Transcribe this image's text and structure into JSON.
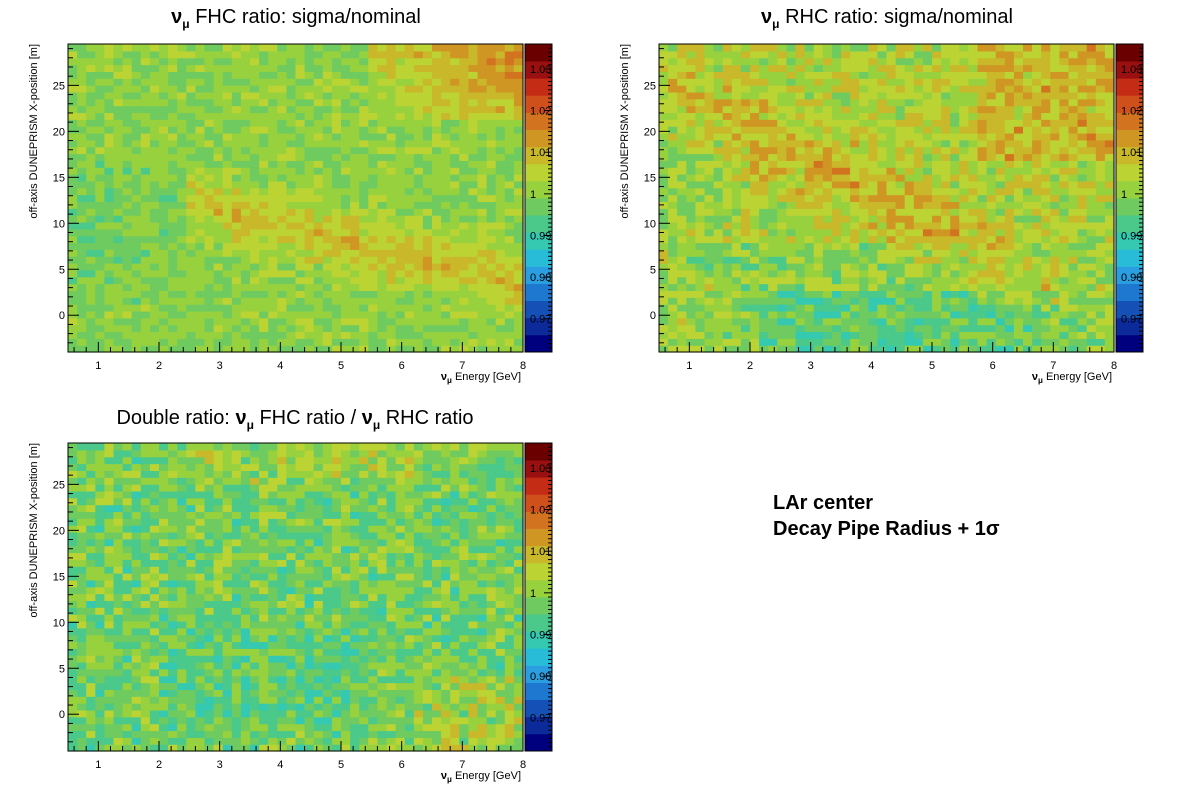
{
  "chart_data": [
    {
      "type": "heatmap",
      "title": "ν_μ FHC ratio: sigma/nominal",
      "title_parts": {
        "symbol": "ν",
        "sub": "μ",
        "rest": " FHC ratio: sigma/nominal"
      },
      "xlabel": "Energy [GeV]",
      "xlabel_symbol": "ν",
      "xlabel_sub": "μ",
      "ylabel": "off-axis DUNEPRISM X-position [m]",
      "xlim": [
        0.5,
        8
      ],
      "ylim": [
        -4,
        29.5
      ],
      "x_ticks": [
        1,
        2,
        3,
        4,
        5,
        6,
        7,
        8
      ],
      "y_ticks": [
        0,
        5,
        10,
        15,
        20,
        25
      ],
      "z_range": [
        0.962,
        1.036
      ],
      "z_ticks": [
        0.97,
        0.98,
        0.99,
        1,
        1.01,
        1.02,
        1.03
      ],
      "z_tick_labels": [
        "0.97",
        "0.98",
        "0.99",
        "1",
        "1.01",
        "1.02",
        "1.03"
      ],
      "palette": [
        "#00007f",
        "#0c2a99",
        "#1450b5",
        "#1e78d0",
        "#2a9ee0",
        "#28bcd8",
        "#34c9b0",
        "#4ac98a",
        "#6fcb5f",
        "#98d13e",
        "#bcd433",
        "#c8b82a",
        "#d09624",
        "#d27320",
        "#d0501c",
        "#c42c16",
        "#9a1010",
        "#6a0000"
      ],
      "grid": "off",
      "legend": "colorbar-right",
      "pattern": "fhc",
      "seed": 11
    },
    {
      "type": "heatmap",
      "title": "ν_μ RHC ratio: sigma/nominal",
      "title_parts": {
        "symbol": "ν",
        "sub": "μ",
        "rest": " RHC ratio: sigma/nominal"
      },
      "xlabel": "Energy [GeV]",
      "xlabel_symbol": "ν",
      "xlabel_sub": "μ",
      "ylabel": "off-axis DUNEPRISM X-position [m]",
      "xlim": [
        0.5,
        8
      ],
      "ylim": [
        -4,
        29.5
      ],
      "x_ticks": [
        1,
        2,
        3,
        4,
        5,
        6,
        7,
        8
      ],
      "y_ticks": [
        0,
        5,
        10,
        15,
        20,
        25
      ],
      "z_range": [
        0.962,
        1.036
      ],
      "z_ticks": [
        0.97,
        0.98,
        0.99,
        1,
        1.01,
        1.02,
        1.03
      ],
      "z_tick_labels": [
        "0.97",
        "0.98",
        "0.99",
        "1",
        "1.01",
        "1.02",
        "1.03"
      ],
      "palette": [
        "#00007f",
        "#0c2a99",
        "#1450b5",
        "#1e78d0",
        "#2a9ee0",
        "#28bcd8",
        "#34c9b0",
        "#4ac98a",
        "#6fcb5f",
        "#98d13e",
        "#bcd433",
        "#c8b82a",
        "#d09624",
        "#d27320",
        "#d0501c",
        "#c42c16",
        "#9a1010",
        "#6a0000"
      ],
      "grid": "off",
      "legend": "colorbar-right",
      "pattern": "rhc",
      "seed": 29
    },
    {
      "type": "heatmap",
      "title": "Double ratio: ν_μ FHC ratio / ν_μ RHC ratio",
      "title_parts": {
        "pre": "Double ratio: ",
        "symbol": "ν",
        "sub": "μ",
        "mid": " FHC ratio / ",
        "symbol2": "ν",
        "sub2": "μ",
        "rest": " RHC ratio"
      },
      "xlabel": "Energy [GeV]",
      "xlabel_symbol": "ν",
      "xlabel_sub": "μ",
      "ylabel": "off-axis DUNEPRISM X-position [m]",
      "xlim": [
        0.5,
        8
      ],
      "ylim": [
        -4,
        29.5
      ],
      "x_ticks": [
        1,
        2,
        3,
        4,
        5,
        6,
        7,
        8
      ],
      "y_ticks": [
        0,
        5,
        10,
        15,
        20,
        25
      ],
      "z_range": [
        0.962,
        1.036
      ],
      "z_ticks": [
        0.97,
        0.98,
        0.99,
        1,
        1.01,
        1.02,
        1.03
      ],
      "z_tick_labels": [
        "0.97",
        "0.98",
        "0.99",
        "1",
        "1.01",
        "1.02",
        "1.03"
      ],
      "palette": [
        "#00007f",
        "#0c2a99",
        "#1450b5",
        "#1e78d0",
        "#2a9ee0",
        "#28bcd8",
        "#34c9b0",
        "#4ac98a",
        "#6fcb5f",
        "#98d13e",
        "#bcd433",
        "#c8b82a",
        "#d09624",
        "#d27320",
        "#d0501c",
        "#c42c16",
        "#9a1010",
        "#6a0000"
      ],
      "grid": "off",
      "legend": "colorbar-right",
      "pattern": "double",
      "seed": 47
    }
  ],
  "info": {
    "line1": "LAr center",
    "line2": "Decay Pipe Radius + 1σ"
  }
}
